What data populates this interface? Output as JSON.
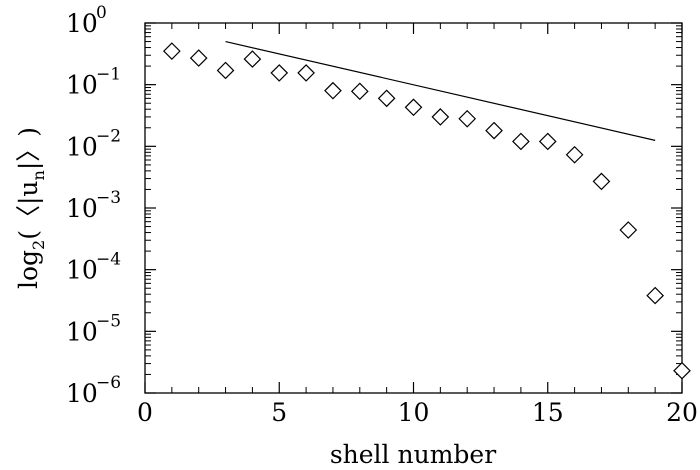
{
  "chart_data": {
    "type": "scatter",
    "xlabel": "shell number",
    "ylabel": {
      "prefix": "log",
      "base_sub": "2",
      "open": "(〈|u",
      "n_sub": "n",
      "close": "|〉)"
    },
    "xlim": [
      0,
      20
    ],
    "ylim": [
      1e-06,
      1
    ],
    "y_scale": "log",
    "x_ticks": [
      0,
      5,
      10,
      15,
      20
    ],
    "x_tick_labels": [
      "0",
      "5",
      "10",
      "15",
      "20"
    ],
    "y_ticks": [
      0,
      -1,
      -2,
      -3,
      -4,
      -5,
      -6
    ],
    "y_tick_base": "10",
    "y_tick_exponents": [
      "0",
      "−1",
      "−2",
      "−3",
      "−4",
      "−5",
      "−6"
    ],
    "grid": false,
    "legend": "none",
    "marker": "diamond-open",
    "series": [
      {
        "x": [
          1,
          2,
          3,
          4,
          5,
          6,
          7,
          8,
          9,
          10,
          11,
          12,
          13,
          14,
          15,
          16,
          17,
          18,
          19,
          20
        ],
        "y": [
          0.35,
          0.27,
          0.17,
          0.26,
          0.155,
          0.155,
          0.08,
          0.078,
          0.06,
          0.043,
          0.03,
          0.028,
          0.018,
          0.012,
          0.012,
          0.0073,
          0.0027,
          0.00044,
          3.8e-05,
          2.3e-06
        ]
      }
    ],
    "reference_line": {
      "x": [
        3,
        19
      ],
      "y": [
        0.5,
        0.0125
      ]
    }
  }
}
